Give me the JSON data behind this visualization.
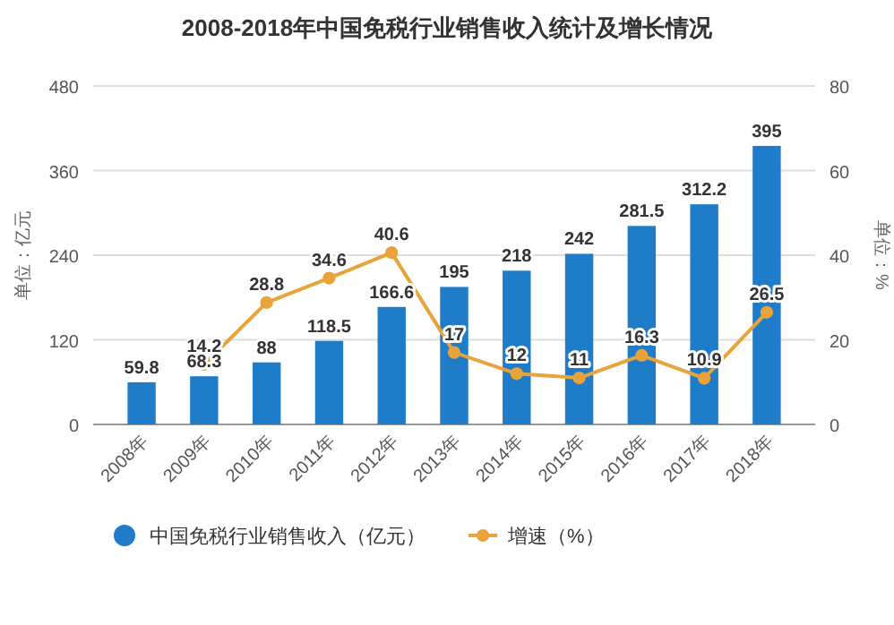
{
  "chart_data": {
    "type": "bar",
    "title": "2008-2018年中国免税行业销售收入统计及增长情况",
    "ylabel": "单位：亿元",
    "y2label": "单位：%",
    "categories": [
      "2008年",
      "2009年",
      "2010年",
      "2011年",
      "2012年",
      "2013年",
      "2014年",
      "2015年",
      "2016年",
      "2017年",
      "2018年"
    ],
    "series": [
      {
        "name": "中国免税行业销售收入（亿元）",
        "color": "#1f7cc8",
        "values": [
          59.8,
          68.3,
          88,
          118.5,
          166.6,
          195,
          218,
          242,
          281.5,
          312.2,
          395
        ]
      },
      {
        "name": "增速（%）",
        "type": "line",
        "axis": "y2",
        "color": "#e8a33a",
        "values": [
          null,
          14.2,
          28.8,
          34.6,
          40.6,
          17,
          12,
          11,
          16.3,
          10.9,
          26.5
        ]
      }
    ],
    "ylim": [
      0,
      480
    ],
    "yticks": [
      0,
      120,
      240,
      360,
      480
    ],
    "y2lim": [
      0,
      80
    ],
    "y2ticks": [
      0,
      20,
      40,
      60,
      80
    ],
    "grid": "y",
    "legend": "bottom",
    "marker": "circle",
    "data_labels": true
  }
}
